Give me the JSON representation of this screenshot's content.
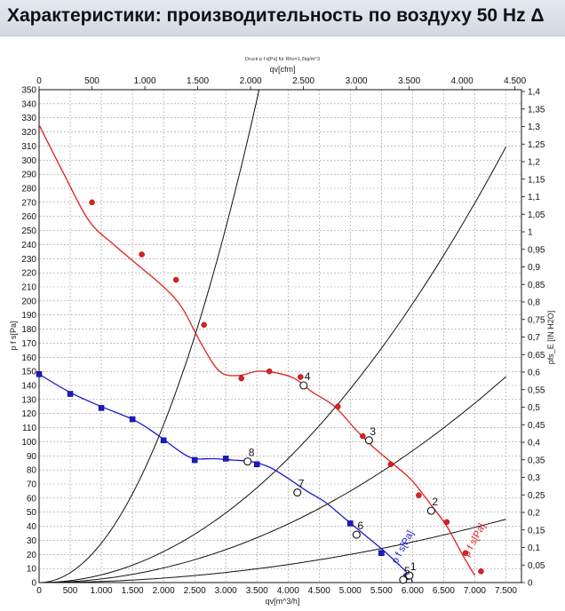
{
  "header": {
    "title": "Характеристики: производительность по воздуху 50 Hz Δ"
  },
  "chart_data": {
    "type": "line",
    "top_note": "Druck p f s[Pa] für Rho=1,2kg/m^3",
    "top_axis_label": "qv[cfm]",
    "xlabel": "qv[m^3/h]",
    "ylabel_left": "p f s[Pa]",
    "ylabel_right": "pfs_E [IN H2O]",
    "xlim": [
      0,
      7.75
    ],
    "ylim": [
      0,
      350
    ],
    "x_ticks": [
      "0",
      "500",
      "1.000",
      "1.500",
      "2.000",
      "2.500",
      "3.000",
      "3.500",
      "4.000",
      "4.500",
      "5.000",
      "5.500",
      "6.000",
      "6.500",
      "7.000",
      "7.500"
    ],
    "top_ticks": [
      "0",
      "500",
      "1.000",
      "1.500",
      "2.000",
      "2.500",
      "3.000",
      "3.500",
      "4.000",
      "4.500"
    ],
    "y_ticks": [
      "0",
      "10",
      "20",
      "30",
      "40",
      "50",
      "60",
      "70",
      "80",
      "90",
      "100",
      "110",
      "120",
      "130",
      "140",
      "150",
      "160",
      "170",
      "180",
      "190",
      "200",
      "210",
      "220",
      "230",
      "240",
      "250",
      "260",
      "270",
      "280",
      "290",
      "300",
      "310",
      "320",
      "330",
      "340",
      "350"
    ],
    "right_ticks": [
      "0",
      "0,05",
      "0,1",
      "0,15",
      "0,2",
      "0,25",
      "0,3",
      "0,35",
      "0,4",
      "0,45",
      "0,5",
      "0,55",
      "0,6",
      "0,65",
      "0,7",
      "0,75",
      "0,8",
      "0,85",
      "0,9",
      "0,95",
      "1",
      "1,05",
      "1,1",
      "1,15",
      "1,2",
      "1,25",
      "1,3",
      "1,35",
      "1,4"
    ],
    "grid": true,
    "series": [
      {
        "name": "p f s[Pa]",
        "color": "#e02020",
        "marker": "circle",
        "curve": [
          [
            0,
            325
          ],
          [
            0.4,
            290
          ],
          [
            0.8,
            257
          ],
          [
            1.2,
            240
          ],
          [
            1.6,
            225
          ],
          [
            2.0,
            210
          ],
          [
            2.3,
            195
          ],
          [
            2.6,
            170
          ],
          [
            2.9,
            150
          ],
          [
            3.2,
            147
          ],
          [
            3.5,
            150
          ],
          [
            3.8,
            149
          ],
          [
            4.1,
            145
          ],
          [
            4.4,
            135
          ],
          [
            4.75,
            125
          ],
          [
            5.1,
            108
          ],
          [
            5.4,
            95
          ],
          [
            5.75,
            82
          ],
          [
            6.0,
            72
          ],
          [
            6.3,
            55
          ],
          [
            6.55,
            40
          ],
          [
            6.8,
            20
          ],
          [
            7.0,
            5
          ]
        ],
        "marked_points": [
          [
            0.85,
            270
          ],
          [
            1.65,
            233
          ],
          [
            2.2,
            215
          ],
          [
            2.65,
            183
          ],
          [
            3.25,
            145
          ],
          [
            3.7,
            150
          ],
          [
            4.2,
            146
          ],
          [
            4.8,
            125
          ],
          [
            5.2,
            104
          ],
          [
            5.65,
            84
          ],
          [
            6.1,
            62
          ],
          [
            6.55,
            43
          ],
          [
            6.85,
            21
          ],
          [
            7.1,
            8
          ]
        ]
      },
      {
        "name": "p f s[Pa]",
        "color": "#1a1acc",
        "marker": "square",
        "curve": [
          [
            0,
            148
          ],
          [
            0.5,
            135
          ],
          [
            1.0,
            125
          ],
          [
            1.5,
            116
          ],
          [
            1.8,
            108
          ],
          [
            2.05,
            100
          ],
          [
            2.3,
            92
          ],
          [
            2.5,
            88
          ],
          [
            2.8,
            88
          ],
          [
            3.1,
            87
          ],
          [
            3.4,
            86
          ],
          [
            3.7,
            82
          ],
          [
            4.0,
            74
          ],
          [
            4.3,
            65
          ],
          [
            4.6,
            57
          ],
          [
            4.9,
            46
          ],
          [
            5.2,
            35
          ],
          [
            5.5,
            24
          ],
          [
            5.75,
            14
          ],
          [
            5.95,
            5
          ],
          [
            6.0,
            0
          ]
        ],
        "marked_points": [
          [
            0,
            148
          ],
          [
            0.5,
            134
          ],
          [
            1.0,
            124
          ],
          [
            1.5,
            116
          ],
          [
            2.0,
            101
          ],
          [
            2.5,
            87
          ],
          [
            3.0,
            88
          ],
          [
            3.5,
            84
          ],
          [
            5.0,
            42
          ],
          [
            5.5,
            21
          ],
          [
            5.9,
            4
          ]
        ]
      }
    ],
    "system_curves": [
      {
        "label": "1",
        "coefficient": 2.8,
        "x_end": 6.5
      },
      {
        "label": "2",
        "coefficient": 0.55,
        "x_end": 7.5
      },
      {
        "label": "3",
        "coefficient": 0.26,
        "x_end": 7.5
      },
      {
        "label": "4",
        "coefficient": 0.08,
        "x_end": 7.5
      }
    ],
    "operating_points": [
      {
        "label": "1",
        "x": 5.95,
        "y": 5
      },
      {
        "label": "2",
        "x": 6.3,
        "y": 51
      },
      {
        "label": "3",
        "x": 5.3,
        "y": 101
      },
      {
        "label": "4",
        "x": 4.25,
        "y": 140
      },
      {
        "label": "5",
        "x": 5.85,
        "y": 2
      },
      {
        "label": "6",
        "x": 5.1,
        "y": 34
      },
      {
        "label": "7",
        "x": 4.15,
        "y": 64
      },
      {
        "label": "8",
        "x": 3.35,
        "y": 86
      }
    ],
    "curve_labels": [
      {
        "text": "p f s[Pa]",
        "color": "#1a1acc",
        "x": 5.75,
        "y": 13,
        "angle": -62
      },
      {
        "text": "p f s[Pa]",
        "color": "#e02020",
        "x": 6.9,
        "y": 18,
        "angle": -62
      }
    ]
  }
}
